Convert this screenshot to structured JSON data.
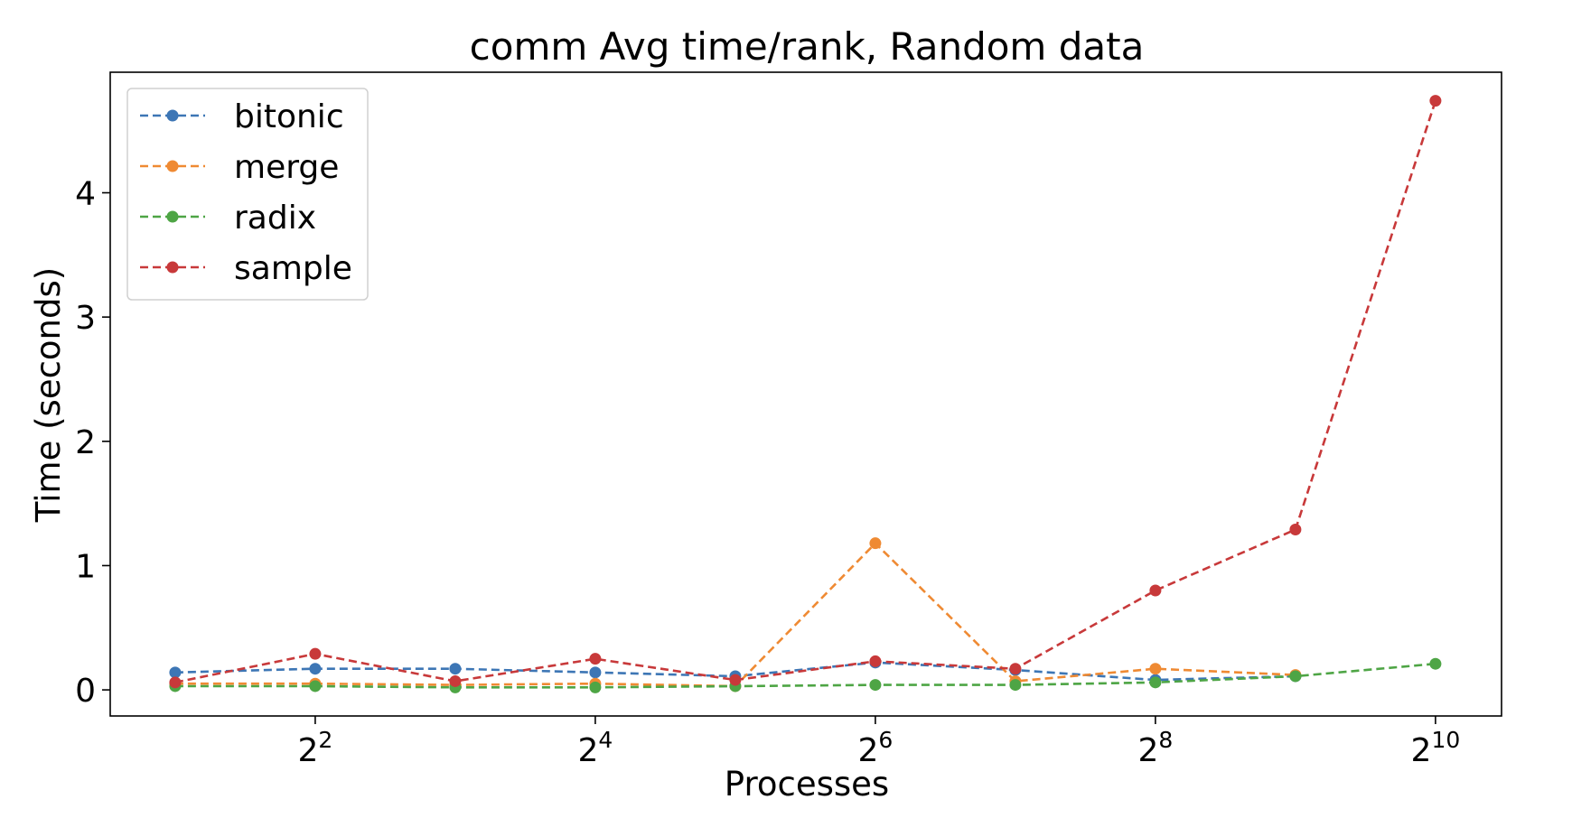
{
  "chart_data": {
    "type": "line",
    "title": "comm Avg time/rank, Random data",
    "xlabel": "Processes",
    "ylabel": "Time (seconds)",
    "xscale": "log2",
    "x": [
      2,
      4,
      8,
      16,
      32,
      64,
      128,
      256,
      512,
      1024
    ],
    "xlim": [
      1.45,
      1420
    ],
    "ylim": [
      -0.21,
      4.97
    ],
    "x_ticks": [
      {
        "value": 4,
        "base": "2",
        "exp": "2"
      },
      {
        "value": 16,
        "base": "2",
        "exp": "4"
      },
      {
        "value": 64,
        "base": "2",
        "exp": "6"
      },
      {
        "value": 256,
        "base": "2",
        "exp": "8"
      },
      {
        "value": 1024,
        "base": "2",
        "exp": "10"
      }
    ],
    "y_ticks": [
      0,
      1,
      2,
      3,
      4
    ],
    "grid": false,
    "legend_position": "top-left",
    "line_style": "dashed",
    "series": [
      {
        "name": "bitonic",
        "color": "#3d76b5",
        "x": [
          2,
          4,
          8,
          16,
          32,
          64,
          128,
          256,
          512
        ],
        "values": [
          0.14,
          0.17,
          0.17,
          0.14,
          0.11,
          0.22,
          0.16,
          0.08,
          0.11
        ]
      },
      {
        "name": "merge",
        "color": "#ef8a33",
        "x": [
          2,
          4,
          8,
          16,
          32,
          64,
          128,
          256,
          512
        ],
        "values": [
          0.05,
          0.05,
          0.04,
          0.05,
          0.03,
          1.18,
          0.07,
          0.17,
          0.12
        ]
      },
      {
        "name": "radix",
        "color": "#4ea545",
        "x": [
          2,
          4,
          8,
          16,
          32,
          64,
          128,
          256,
          512,
          1024
        ],
        "values": [
          0.03,
          0.03,
          0.02,
          0.02,
          0.03,
          0.04,
          0.04,
          0.06,
          0.11,
          0.21
        ]
      },
      {
        "name": "sample",
        "color": "#c8393a",
        "x": [
          2,
          4,
          8,
          16,
          32,
          64,
          128,
          256,
          512,
          1024
        ],
        "values": [
          0.06,
          0.29,
          0.07,
          0.25,
          0.08,
          0.23,
          0.17,
          0.8,
          1.29,
          4.74
        ]
      }
    ]
  }
}
